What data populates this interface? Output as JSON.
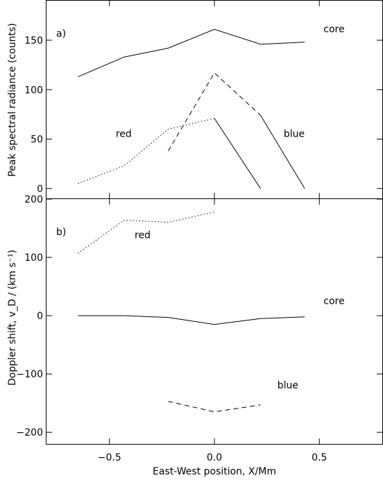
{
  "chart_data": [
    {
      "type": "line",
      "panel_label": "a)",
      "ylabel": "Peak spectral radiance (counts)",
      "xlim": [
        -0.8,
        0.8
      ],
      "ylim": [
        -10,
        190
      ],
      "yticks": [
        0,
        50,
        100,
        150
      ],
      "ytick_labels": [
        "0",
        "50",
        "100",
        "150"
      ],
      "series": [
        {
          "name": "core",
          "style": "solid",
          "x": [
            -0.65,
            -0.43,
            -0.22,
            0.0,
            0.22,
            0.43
          ],
          "y": [
            113,
            133,
            142,
            161,
            146,
            148
          ]
        },
        {
          "name": "red",
          "style": "dotted",
          "x": [
            -0.65,
            -0.43,
            -0.22,
            0.0
          ],
          "y": [
            5,
            23,
            60,
            71
          ]
        },
        {
          "name": "",
          "style": "solid",
          "x": [
            0.0,
            0.22
          ],
          "y": [
            71,
            0
          ]
        },
        {
          "name": "",
          "style": "dashed",
          "x": [
            -0.22,
            0.0,
            0.22
          ],
          "y": [
            38,
            117,
            74
          ]
        },
        {
          "name": "blue",
          "style": "solid",
          "x": [
            0.22,
            0.43
          ],
          "y": [
            74,
            0
          ]
        }
      ],
      "annotations": [
        {
          "text": "core",
          "x": 0.52,
          "y": 158
        },
        {
          "text": "red",
          "x": -0.47,
          "y": 52
        },
        {
          "text": "blue",
          "x": 0.33,
          "y": 52
        }
      ]
    },
    {
      "type": "line",
      "panel_label": "b)",
      "ylabel": "Doppler shift, v_D / (km s⁻¹)",
      "xlabel": "East-West position, X/Mm",
      "xlim": [
        -0.8,
        0.8
      ],
      "ylim": [
        -220,
        200
      ],
      "xticks": [
        -0.5,
        0.0,
        0.5
      ],
      "xtick_labels": [
        "−0.5",
        "0.0",
        "0.5"
      ],
      "yticks": [
        -200,
        -100,
        0,
        100,
        200
      ],
      "ytick_labels": [
        "−200",
        "−100",
        "0",
        "100",
        "200"
      ],
      "series": [
        {
          "name": "red",
          "style": "dotted",
          "x": [
            -0.65,
            -0.43,
            -0.22,
            0.0
          ],
          "y": [
            107,
            164,
            160,
            178
          ]
        },
        {
          "name": "core",
          "style": "solid",
          "x": [
            -0.65,
            -0.43,
            -0.22,
            0.0,
            0.22,
            0.43
          ],
          "y": [
            0,
            0,
            -3,
            -15,
            -5,
            -2
          ]
        },
        {
          "name": "blue",
          "style": "dashed",
          "x": [
            -0.22,
            0.0,
            0.22
          ],
          "y": [
            -147,
            -165,
            -153
          ]
        }
      ],
      "annotations": [
        {
          "text": "red",
          "x": -0.38,
          "y": 133
        },
        {
          "text": "core",
          "x": 0.52,
          "y": 20
        },
        {
          "text": "blue",
          "x": 0.3,
          "y": -125
        }
      ]
    }
  ]
}
